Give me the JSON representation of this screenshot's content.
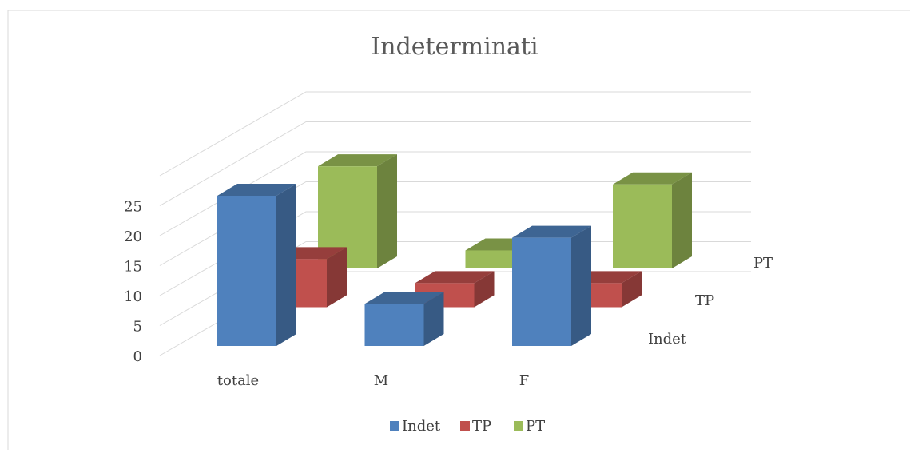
{
  "chart_data": {
    "type": "bar3d",
    "title": "Indeterminati",
    "categories": [
      "totale",
      "M",
      "F"
    ],
    "series": [
      {
        "name": "Indet",
        "color": "#4f81bd",
        "values": [
          25,
          7,
          18
        ]
      },
      {
        "name": "TP",
        "color": "#c0504d",
        "values": [
          8,
          4,
          4
        ]
      },
      {
        "name": "PT",
        "color": "#9bbb59",
        "values": [
          17,
          3,
          14
        ]
      }
    ],
    "ylim": [
      0,
      30
    ],
    "yticks": [
      0,
      5,
      10,
      15,
      20,
      25
    ],
    "grid": true,
    "legend": "bottom"
  }
}
